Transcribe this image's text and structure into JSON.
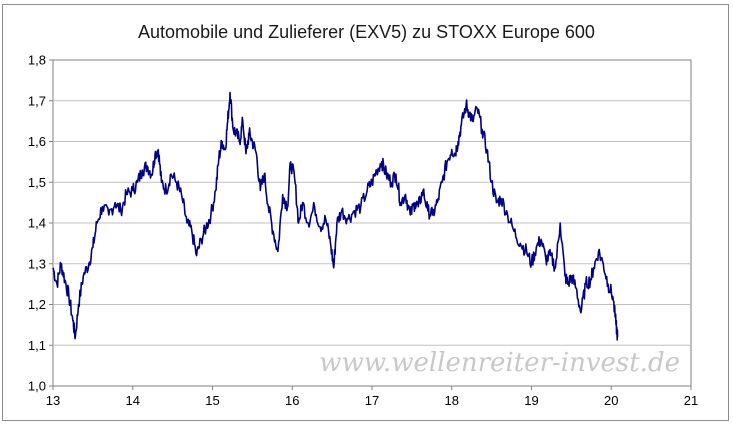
{
  "chart_data": {
    "type": "line",
    "title": "Automobile und Zulieferer (EXV5) zu STOXX Europe 600",
    "xlabel": "",
    "ylabel": "",
    "xlim": [
      13,
      21
    ],
    "ylim": [
      1.0,
      1.8
    ],
    "x_ticks": [
      "13",
      "14",
      "15",
      "16",
      "17",
      "18",
      "19",
      "20",
      "21"
    ],
    "y_ticks": [
      "1,0",
      "1,1",
      "1,2",
      "1,3",
      "1,4",
      "1,5",
      "1,6",
      "1,7",
      "1,8"
    ],
    "grid": "horizontal",
    "legend": "none",
    "line_color": "#000080",
    "watermark": "www.wellenreiter-invest.de",
    "series": [
      {
        "x": [
          13.0,
          13.05,
          13.1,
          13.15,
          13.2,
          13.25,
          13.28,
          13.32,
          13.38,
          13.45,
          13.5,
          13.55,
          13.62,
          13.7,
          13.78,
          13.85,
          13.92,
          14.0,
          14.06,
          14.12,
          14.18,
          14.24,
          14.28,
          14.32,
          14.36,
          14.42,
          14.48,
          14.55,
          14.62,
          14.68,
          14.74,
          14.8,
          14.86,
          14.92,
          14.98,
          15.04,
          15.08,
          15.12,
          15.16,
          15.19,
          15.22,
          15.26,
          15.3,
          15.34,
          15.38,
          15.42,
          15.46,
          15.5,
          15.55,
          15.6,
          15.65,
          15.7,
          15.76,
          15.82,
          15.88,
          15.94,
          15.98,
          16.03,
          16.08,
          16.13,
          16.2,
          16.28,
          16.35,
          16.42,
          16.48,
          16.52,
          16.56,
          16.62,
          16.7,
          16.78,
          16.86,
          16.94,
          17.0,
          17.06,
          17.12,
          17.18,
          17.24,
          17.3,
          17.36,
          17.42,
          17.48,
          17.54,
          17.58,
          17.64,
          17.7,
          17.76,
          17.82,
          17.88,
          17.94,
          18.0,
          18.04,
          18.08,
          18.12,
          18.18,
          18.22,
          18.26,
          18.32,
          18.38,
          18.44,
          18.5,
          18.56,
          18.62,
          18.7,
          18.78,
          18.86,
          18.94,
          19.0,
          19.06,
          19.12,
          19.18,
          19.24,
          19.3,
          19.36,
          19.42,
          19.46,
          19.5,
          19.56,
          19.62,
          19.68,
          19.74,
          19.78,
          19.84,
          19.9,
          19.96,
          20.02,
          20.06,
          20.08
        ],
        "y": [
          1.29,
          1.25,
          1.3,
          1.26,
          1.22,
          1.16,
          1.12,
          1.2,
          1.27,
          1.3,
          1.34,
          1.4,
          1.44,
          1.42,
          1.45,
          1.43,
          1.47,
          1.48,
          1.5,
          1.53,
          1.54,
          1.52,
          1.57,
          1.58,
          1.5,
          1.48,
          1.52,
          1.5,
          1.46,
          1.4,
          1.38,
          1.32,
          1.36,
          1.39,
          1.42,
          1.48,
          1.56,
          1.6,
          1.58,
          1.65,
          1.72,
          1.63,
          1.62,
          1.6,
          1.65,
          1.57,
          1.62,
          1.6,
          1.57,
          1.48,
          1.52,
          1.44,
          1.38,
          1.33,
          1.47,
          1.44,
          1.55,
          1.51,
          1.4,
          1.45,
          1.4,
          1.44,
          1.39,
          1.41,
          1.35,
          1.29,
          1.4,
          1.43,
          1.41,
          1.43,
          1.44,
          1.48,
          1.5,
          1.53,
          1.55,
          1.52,
          1.5,
          1.52,
          1.45,
          1.47,
          1.42,
          1.45,
          1.44,
          1.48,
          1.43,
          1.42,
          1.45,
          1.5,
          1.55,
          1.58,
          1.57,
          1.6,
          1.64,
          1.69,
          1.67,
          1.65,
          1.68,
          1.63,
          1.58,
          1.5,
          1.45,
          1.46,
          1.42,
          1.38,
          1.35,
          1.33,
          1.3,
          1.34,
          1.36,
          1.31,
          1.32,
          1.29,
          1.4,
          1.27,
          1.25,
          1.27,
          1.24,
          1.18,
          1.25,
          1.26,
          1.29,
          1.33,
          1.3,
          1.25,
          1.22,
          1.15,
          1.12
        ]
      }
    ]
  }
}
